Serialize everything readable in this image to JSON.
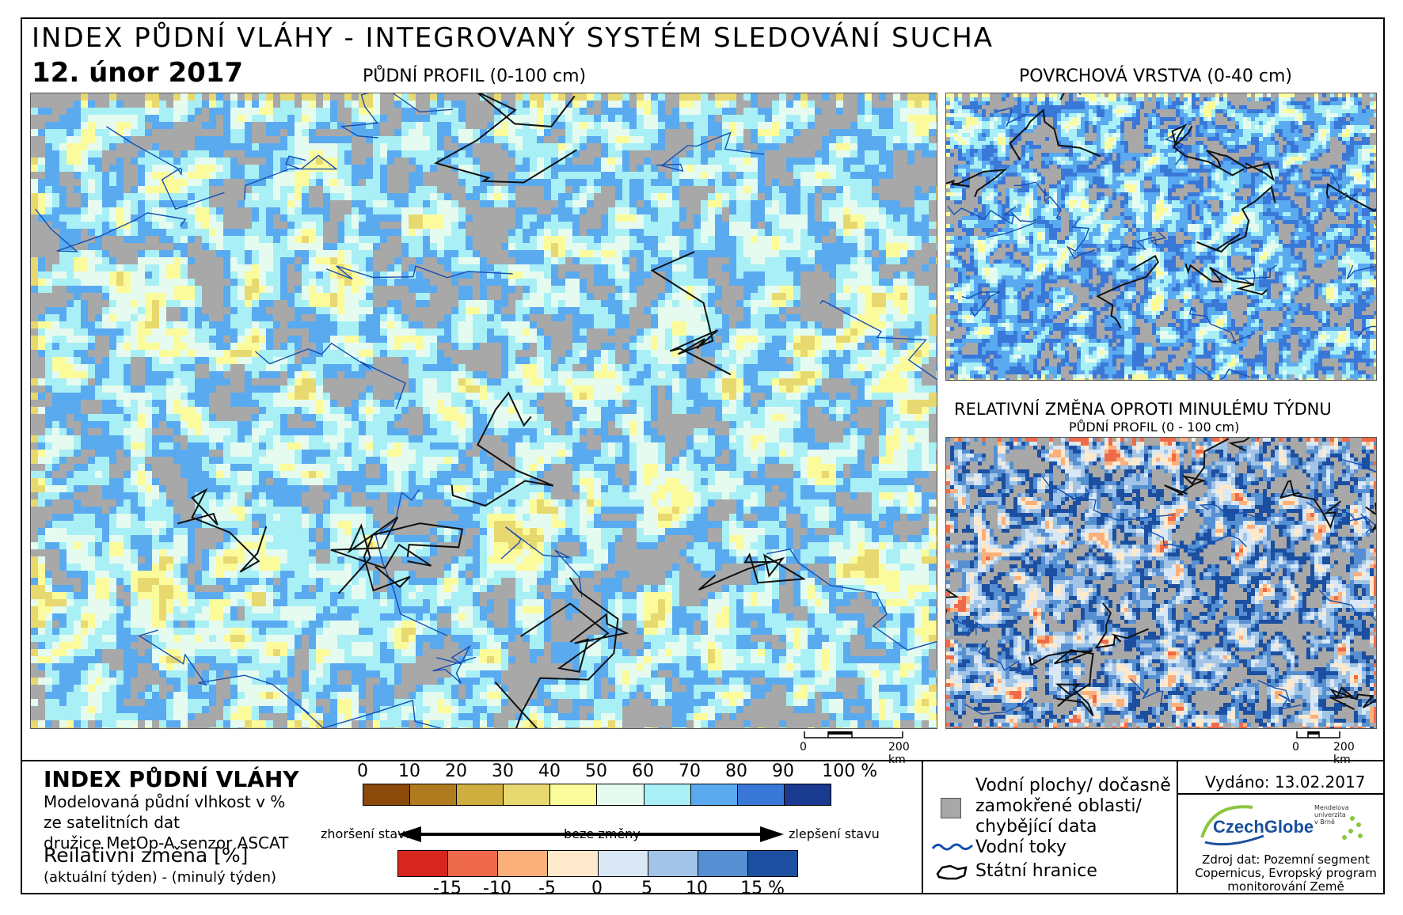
{
  "title": "INDEX PŮDNÍ VLÁHY - INTEGROVANÝ SYSTÉM SLEDOVÁNÍ SUCHA",
  "date": "12. únor 2017",
  "panels": {
    "main_title": "PŮDNÍ PROFIL (0-100 cm)",
    "surface_title": "POVRCHOVÁ VRSTVA (0-40 cm)",
    "change_title": "RELATIVNÍ ZMĚNA OPROTI MINULÉMU TÝDNU",
    "change_subtitle": "PŮDNÍ PROFIL (0 - 100 cm)"
  },
  "scale": {
    "zero": "0",
    "distance": "200 km"
  },
  "legend": {
    "title": "INDEX PŮDNÍ VLÁHY",
    "description": [
      "Modelovaná půdní vlhkost v %",
      "ze satelitních dat",
      "družice MetOp-A senzor ASCAT"
    ],
    "moisture_ticks": [
      "0",
      "10",
      "20",
      "30",
      "40",
      "50",
      "60",
      "70",
      "80",
      "90",
      "100 %"
    ],
    "moisture_colors": [
      "#8b4a0a",
      "#b07a1e",
      "#cfae3f",
      "#e8d870",
      "#fbfb9c",
      "#e6fbf0",
      "#a8f0f5",
      "#5aaaf0",
      "#3a78d8",
      "#1a3a90"
    ],
    "arrow_left": "zhoršení stavu",
    "arrow_mid": "beze změny",
    "arrow_right": "zlepšení stavu",
    "change_title": "Reilativní změna [%]",
    "change_sub": "(aktuální týden) - (minulý týden)",
    "change_ticks": [
      "-15",
      "-10",
      "-5",
      "0",
      "5",
      "10",
      "15 %"
    ],
    "change_colors": [
      "#d7261e",
      "#ef6a4a",
      "#fbb07c",
      "#fee9cc",
      "#d9e8f4",
      "#a2c4e6",
      "#5690d2",
      "#1c4fa0"
    ]
  },
  "key": {
    "water_bodies": [
      "Vodní plochy/ dočasně",
      "zamokřené oblasti/",
      "chybějící data"
    ],
    "rivers": "Vodní toky",
    "borders": "Státní hranice"
  },
  "issued": "Vydáno: 13.02.2017",
  "logo": {
    "name": "CzechGlobe",
    "university": "Mendelova univerzita v Brně"
  },
  "source": [
    "Zdroj dat: Pozemní segment",
    "Copernicus, Evropský program",
    "monitorování Země"
  ]
}
